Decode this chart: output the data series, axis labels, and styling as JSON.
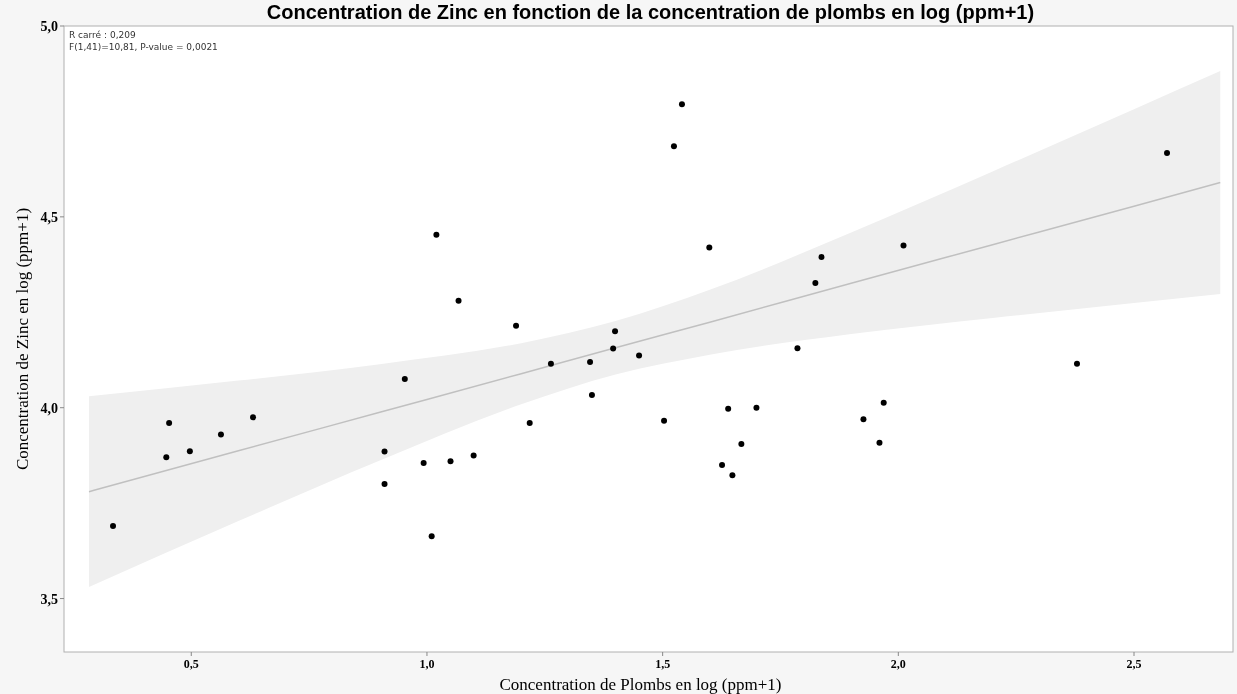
{
  "chart_data": {
    "type": "scatter",
    "title": "Concentration de Zinc en fonction de la concentration de plombs en log (ppm+1)",
    "xlabel": "Concentration de Plombs en log (ppm+1)",
    "ylabel": "Concentration de Zinc en log (ppm+1)",
    "annotations": [
      "R carré : 0,209",
      "F(1,41)=10,81, P-value = 0,0021"
    ],
    "xlim": [
      0.23,
      2.71
    ],
    "ylim": [
      3.36,
      5.0
    ],
    "xticks": [
      {
        "value": 0.5,
        "label": "0,5"
      },
      {
        "value": 1,
        "label": "1,0"
      },
      {
        "value": 1.5,
        "label": "1,5"
      },
      {
        "value": 2,
        "label": "2,0"
      },
      {
        "value": 2.5,
        "label": "2,5"
      }
    ],
    "yticks": [
      {
        "value": 3.5,
        "label": "3,5"
      },
      {
        "value": 4,
        "label": "4,0"
      },
      {
        "value": 4.5,
        "label": "4,5"
      },
      {
        "value": 5,
        "label": "5,0"
      }
    ],
    "grid": false,
    "series": [
      {
        "type": "line",
        "color": "#c0c0c0",
        "x": [
          0.283,
          0.6,
          0.9,
          1.2,
          1.4,
          1.6,
          1.9,
          2.2,
          2.5,
          2.683
        ],
        "values": [
          3.78,
          3.887,
          3.988,
          4.089,
          4.157,
          4.224,
          4.326,
          4.427,
          4.528,
          4.59
        ],
        "lower": [
          3.53,
          3.703,
          3.862,
          4.009,
          4.087,
          4.139,
          4.193,
          4.235,
          4.274,
          4.298
        ],
        "upper": [
          4.03,
          4.071,
          4.114,
          4.169,
          4.227,
          4.309,
          4.459,
          4.619,
          4.782,
          4.882
        ]
      },
      {
        "marker": "circle",
        "color": "#000000",
        "x": [
          0.334,
          0.447,
          0.453,
          0.497,
          0.563,
          0.631,
          0.91,
          0.91,
          0.953,
          0.993,
          1.01,
          1.02,
          1.05,
          1.067,
          1.099,
          1.189,
          1.218,
          1.263,
          1.346,
          1.35,
          1.395,
          1.399,
          1.45,
          1.503,
          1.524,
          1.541,
          1.599,
          1.626,
          1.639,
          1.648,
          1.667,
          1.699,
          1.786,
          1.824,
          1.837,
          1.926,
          1.96,
          1.969,
          2.011,
          2.379,
          2.57
        ],
        "values": [
          3.69,
          3.87,
          3.96,
          3.886,
          3.93,
          3.975,
          3.885,
          3.8,
          4.075,
          3.855,
          3.663,
          4.453,
          3.86,
          4.28,
          3.875,
          4.215,
          3.96,
          4.115,
          4.12,
          4.033,
          4.155,
          4.2,
          4.137,
          3.966,
          4.685,
          4.795,
          4.42,
          3.85,
          3.997,
          3.823,
          3.905,
          4.0,
          4.156,
          4.327,
          4.395,
          3.97,
          3.908,
          4.013,
          4.425,
          4.115,
          4.667
        ]
      }
    ]
  }
}
